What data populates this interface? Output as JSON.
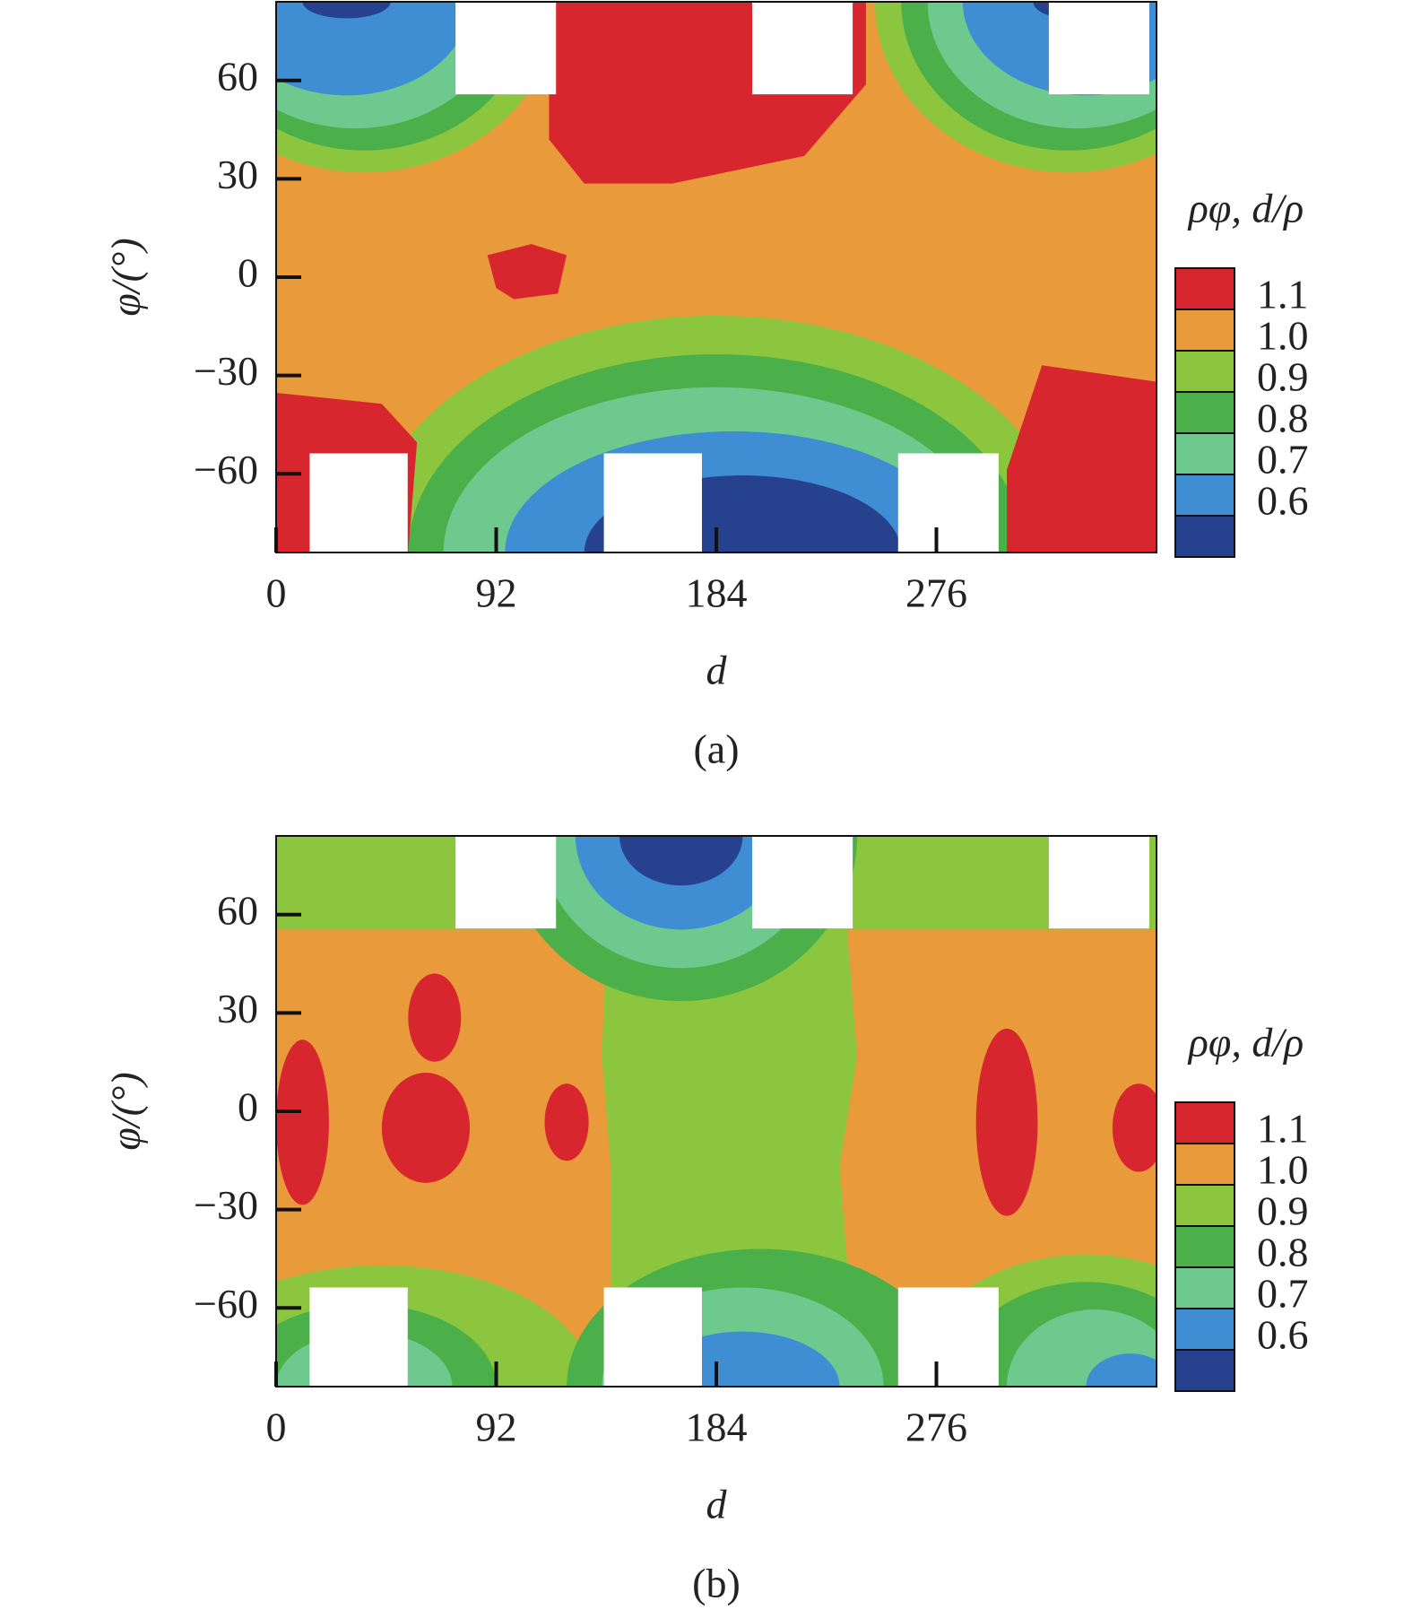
{
  "chart_data": [
    {
      "type": "contour",
      "x_label": "d",
      "y_label": "φ/(°)",
      "colorbar_title": "ρφ, d/ρ",
      "caption": "(a)",
      "xlim": [
        0,
        368
      ],
      "xticks": [
        0,
        92,
        184,
        276
      ],
      "ylim": [
        -84,
        84
      ],
      "yticks": [
        {
          "value": 60,
          "label": "60"
        },
        {
          "value": 30,
          "label": "30"
        },
        {
          "value": 0,
          "label": "0"
        },
        {
          "value": -30,
          "label": "−30"
        },
        {
          "value": -60,
          "label": "−60"
        }
      ],
      "levels": [
        {
          "value": 1.1,
          "label": "1.1"
        },
        {
          "value": 1,
          "label": "1.0"
        },
        {
          "value": 0.9,
          "label": "0.9"
        },
        {
          "value": 0.8,
          "label": "0.8"
        },
        {
          "value": 0.7,
          "label": "0.7"
        },
        {
          "value": 0.6,
          "label": "0.6"
        }
      ],
      "colors": [
        "#d7262e",
        "#e99a3a",
        "#8cc63e",
        "#4cb04a",
        "#6dc98d",
        "#3f8ed3",
        "#26428f"
      ]
    },
    {
      "type": "contour",
      "x_label": "d",
      "y_label": "φ/(°)",
      "colorbar_title": "ρφ, d/ρ",
      "caption": "(b)",
      "xlim": [
        0,
        368
      ],
      "xticks": [
        0,
        92,
        184,
        276
      ],
      "ylim": [
        -84,
        84
      ],
      "yticks": [
        {
          "value": 60,
          "label": "60"
        },
        {
          "value": 30,
          "label": "30"
        },
        {
          "value": 0,
          "label": "0"
        },
        {
          "value": -30,
          "label": "−30"
        },
        {
          "value": -60,
          "label": "−60"
        }
      ],
      "levels": [
        {
          "value": 1.1,
          "label": "1.1"
        },
        {
          "value": 1,
          "label": "1.0"
        },
        {
          "value": 0.9,
          "label": "0.9"
        },
        {
          "value": 0.8,
          "label": "0.8"
        },
        {
          "value": 0.7,
          "label": "0.7"
        },
        {
          "value": 0.6,
          "label": "0.6"
        }
      ],
      "colors": [
        "#d7262e",
        "#e99a3a",
        "#8cc63e",
        "#4cb04a",
        "#6dc98d",
        "#3f8ed3",
        "#26428f"
      ]
    }
  ]
}
